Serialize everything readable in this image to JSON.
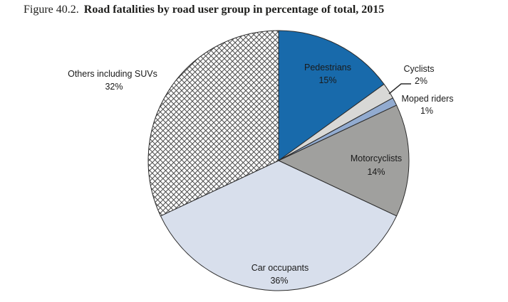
{
  "title": {
    "figure": "Figure 40.2.",
    "text": "Road fatalities by road user group in percentage of total, 2015"
  },
  "chart_data": {
    "type": "pie",
    "title": "Road fatalities by road user group in percentage of total, 2015",
    "start_angle": "12-oclock",
    "direction": "clockwise",
    "legend_position": "none",
    "categories": [
      "Pedestrians",
      "Cyclists",
      "Moped riders",
      "Motorcyclists",
      "Car occupants",
      "Others including SUVs"
    ],
    "values": [
      15,
      2,
      1,
      14,
      36,
      32
    ],
    "segments": [
      {
        "label": "Pedestrians",
        "value": 15,
        "display": "15%",
        "color": "#186aab",
        "pattern": ""
      },
      {
        "label": "Cyclists",
        "value": 2,
        "display": "2%",
        "color": "#d8d8d6",
        "pattern": ""
      },
      {
        "label": "Moped riders",
        "value": 1,
        "display": "1%",
        "color": "#92abd0",
        "pattern": ""
      },
      {
        "label": "Motorcyclists",
        "value": 14,
        "display": "14%",
        "color": "#a0a09e",
        "pattern": ""
      },
      {
        "label": "Car occupants",
        "value": 36,
        "display": "36%",
        "color": "#d8dfec",
        "pattern": ""
      },
      {
        "label": "Others including SUVs",
        "value": 32,
        "display": "32%",
        "color": "#ffffff",
        "pattern": "crosshatch"
      }
    ],
    "outline_color": "#2b2b2b",
    "hatch_line_color": "#4d4d4d",
    "label_color": "#1a1a1a"
  }
}
